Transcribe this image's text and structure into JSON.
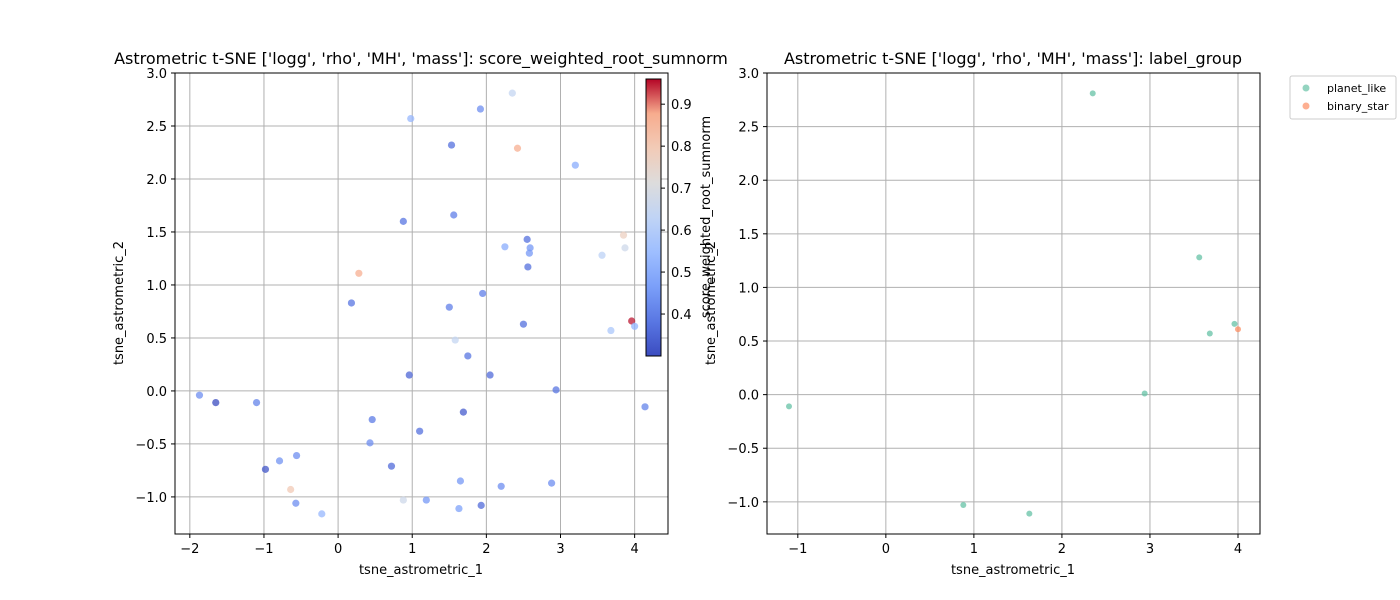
{
  "chart_data": [
    {
      "type": "scatter",
      "title": "Astrometric t-SNE ['logg', 'rho', 'MH', 'mass']: score_weighted_root_sumnorm",
      "xlabel": "tsne_astrometric_1",
      "ylabel": "tsne_astrometric_2",
      "xlim": [
        -2.2,
        4.45
      ],
      "ylim": [
        -1.35,
        3.0
      ],
      "xticks": [
        -2,
        -1,
        0,
        1,
        2,
        3,
        4
      ],
      "yticks": [
        -1.0,
        -0.5,
        0.0,
        0.5,
        1.0,
        1.5,
        2.0,
        2.5,
        3.0
      ],
      "xtick_labels": [
        "−2",
        "−1",
        "0",
        "1",
        "2",
        "3",
        "4"
      ],
      "ytick_labels": [
        "−1.0",
        "−0.5",
        "0.0",
        "0.5",
        "1.0",
        "1.5",
        "2.0",
        "2.5",
        "3.0"
      ],
      "grid": true,
      "colormap": "coolwarm",
      "colorbar": {
        "label": "score_weighted_root_sumnorm",
        "range": [
          0.3,
          0.96
        ],
        "ticks": [
          0.4,
          0.5,
          0.6,
          0.7,
          0.8,
          0.9
        ],
        "tick_labels": [
          "0.4",
          "0.5",
          "0.6",
          "0.7",
          "0.8",
          "0.9"
        ]
      },
      "points": [
        {
          "x": 1.92,
          "y": 2.66,
          "c": 0.43
        },
        {
          "x": 2.35,
          "y": 2.81,
          "c": 0.64
        },
        {
          "x": 0.98,
          "y": 2.57,
          "c": 0.53
        },
        {
          "x": 1.53,
          "y": 2.32,
          "c": 0.37
        },
        {
          "x": 2.42,
          "y": 2.29,
          "c": 0.87
        },
        {
          "x": 3.2,
          "y": 2.13,
          "c": 0.5
        },
        {
          "x": 0.88,
          "y": 1.6,
          "c": 0.38
        },
        {
          "x": 1.56,
          "y": 1.66,
          "c": 0.4
        },
        {
          "x": 2.55,
          "y": 1.43,
          "c": 0.37
        },
        {
          "x": 2.25,
          "y": 1.36,
          "c": 0.5
        },
        {
          "x": 2.59,
          "y": 1.35,
          "c": 0.45
        },
        {
          "x": 2.58,
          "y": 1.3,
          "c": 0.45
        },
        {
          "x": 2.56,
          "y": 1.17,
          "c": 0.37
        },
        {
          "x": 3.85,
          "y": 1.47,
          "c": 0.77
        },
        {
          "x": 3.87,
          "y": 1.35,
          "c": 0.67
        },
        {
          "x": 3.56,
          "y": 1.28,
          "c": 0.62
        },
        {
          "x": 0.28,
          "y": 1.11,
          "c": 0.87
        },
        {
          "x": 0.18,
          "y": 0.83,
          "c": 0.38
        },
        {
          "x": 1.5,
          "y": 0.79,
          "c": 0.4
        },
        {
          "x": 1.95,
          "y": 0.92,
          "c": 0.4
        },
        {
          "x": 2.5,
          "y": 0.63,
          "c": 0.37
        },
        {
          "x": 1.58,
          "y": 0.48,
          "c": 0.64
        },
        {
          "x": 1.75,
          "y": 0.33,
          "c": 0.38
        },
        {
          "x": 3.68,
          "y": 0.57,
          "c": 0.58
        },
        {
          "x": 3.96,
          "y": 0.66,
          "c": 0.95
        },
        {
          "x": 4.0,
          "y": 0.61,
          "c": 0.52
        },
        {
          "x": 0.96,
          "y": 0.15,
          "c": 0.35
        },
        {
          "x": 2.05,
          "y": 0.15,
          "c": 0.36
        },
        {
          "x": 2.94,
          "y": 0.01,
          "c": 0.38
        },
        {
          "x": -1.87,
          "y": -0.04,
          "c": 0.43
        },
        {
          "x": -1.65,
          "y": -0.11,
          "c": 0.3
        },
        {
          "x": -1.1,
          "y": -0.11,
          "c": 0.41
        },
        {
          "x": 4.14,
          "y": -0.15,
          "c": 0.41
        },
        {
          "x": 1.69,
          "y": -0.2,
          "c": 0.33
        },
        {
          "x": 0.46,
          "y": -0.27,
          "c": 0.39
        },
        {
          "x": 1.1,
          "y": -0.38,
          "c": 0.37
        },
        {
          "x": 0.43,
          "y": -0.49,
          "c": 0.43
        },
        {
          "x": -0.56,
          "y": -0.61,
          "c": 0.43
        },
        {
          "x": -0.79,
          "y": -0.66,
          "c": 0.44
        },
        {
          "x": 0.72,
          "y": -0.71,
          "c": 0.36
        },
        {
          "x": -0.98,
          "y": -0.74,
          "c": 0.32
        },
        {
          "x": 1.65,
          "y": -0.85,
          "c": 0.45
        },
        {
          "x": 2.2,
          "y": -0.9,
          "c": 0.43
        },
        {
          "x": 2.88,
          "y": -0.87,
          "c": 0.43
        },
        {
          "x": -0.64,
          "y": -0.93,
          "c": 0.8
        },
        {
          "x": 0.88,
          "y": -1.03,
          "c": 0.67
        },
        {
          "x": 1.19,
          "y": -1.03,
          "c": 0.45
        },
        {
          "x": -0.57,
          "y": -1.06,
          "c": 0.43
        },
        {
          "x": 1.93,
          "y": -1.08,
          "c": 0.36
        },
        {
          "x": 1.63,
          "y": -1.11,
          "c": 0.47
        },
        {
          "x": -0.22,
          "y": -1.16,
          "c": 0.53
        }
      ]
    },
    {
      "type": "scatter",
      "title": "Astrometric t-SNE ['logg', 'rho', 'MH', 'mass']: label_group",
      "xlabel": "tsne_astrometric_1",
      "ylabel": "tsne_astrometric_2",
      "xlim": [
        -1.35,
        4.25
      ],
      "ylim": [
        -1.3,
        3.0
      ],
      "xticks": [
        -1,
        0,
        1,
        2,
        3,
        4
      ],
      "yticks": [
        -1.0,
        -0.5,
        0.0,
        0.5,
        1.0,
        1.5,
        2.0,
        2.5,
        3.0
      ],
      "xtick_labels": [
        "−1",
        "0",
        "1",
        "2",
        "3",
        "4"
      ],
      "ytick_labels": [
        "−1.0",
        "−0.5",
        "0.0",
        "0.5",
        "1.0",
        "1.5",
        "2.0",
        "2.5",
        "3.0"
      ],
      "grid": true,
      "legend_placement": "outside upper right",
      "series": [
        {
          "name": "planet_like",
          "color": "#66c2a5",
          "points": [
            {
              "x": 2.35,
              "y": 2.81
            },
            {
              "x": 3.56,
              "y": 1.28
            },
            {
              "x": 3.96,
              "y": 0.66
            },
            {
              "x": 3.68,
              "y": 0.57
            },
            {
              "x": 2.94,
              "y": 0.01
            },
            {
              "x": -1.1,
              "y": -0.11
            },
            {
              "x": 0.88,
              "y": -1.03
            },
            {
              "x": 1.63,
              "y": -1.11
            }
          ]
        },
        {
          "name": "binary_star",
          "color": "#fc8d62",
          "points": [
            {
              "x": 4.0,
              "y": 0.61
            }
          ]
        }
      ]
    }
  ]
}
